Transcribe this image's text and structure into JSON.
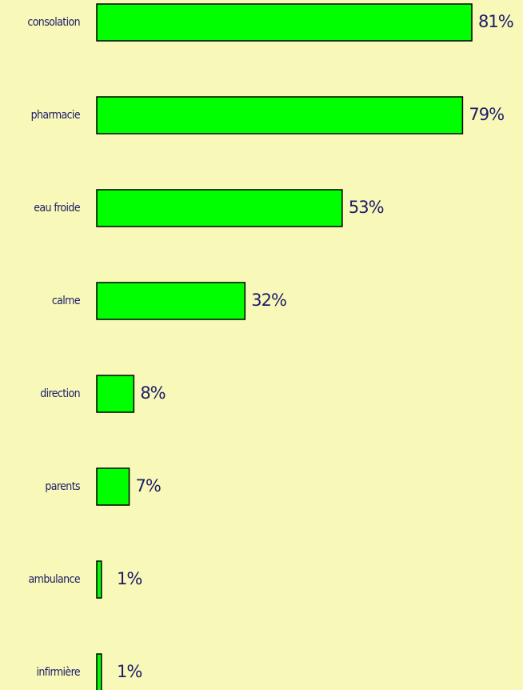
{
  "chart_data": {
    "type": "bar",
    "orientation": "horizontal",
    "categories": [
      "consolation",
      "pharmacie",
      "eau froide",
      "calme",
      "direction",
      "parents",
      "ambulance",
      "infirmière"
    ],
    "values": [
      81,
      79,
      53,
      32,
      8,
      7,
      1,
      1
    ],
    "value_labels": [
      "81%",
      "79%",
      "53%",
      "32%",
      "8%",
      "7%",
      "1%",
      "1%"
    ],
    "color": "#00ff00"
  }
}
